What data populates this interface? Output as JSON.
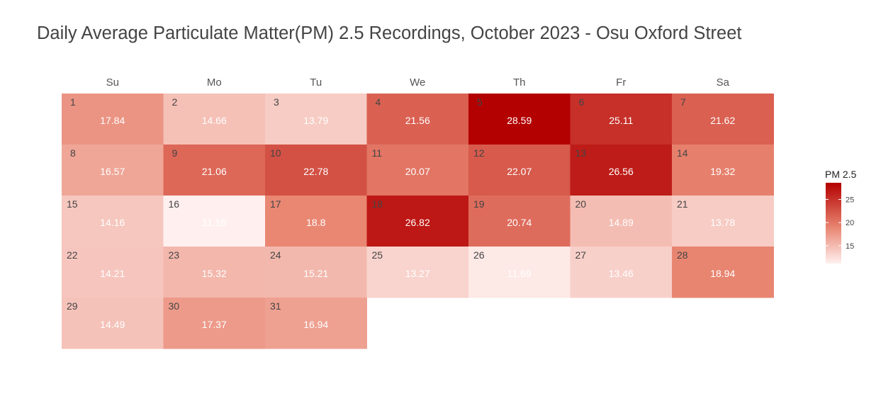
{
  "chart_data": {
    "type": "heatmap",
    "title": "Daily Average Particulate Matter(PM) 2.5 Recordings, October 2023 - Osu Oxford Street",
    "weekdays": [
      "Su",
      "Mo",
      "Tu",
      "We",
      "Th",
      "Fr",
      "Sa"
    ],
    "first_weekday_index": 0,
    "days": [
      1,
      2,
      3,
      4,
      5,
      6,
      7,
      8,
      9,
      10,
      11,
      12,
      13,
      14,
      15,
      16,
      17,
      18,
      19,
      20,
      21,
      22,
      23,
      24,
      25,
      26,
      27,
      28,
      29,
      30,
      31
    ],
    "values": [
      "17.84",
      "14.66",
      "13.79",
      "21.56",
      "28.59",
      "25.11",
      "21.62",
      "16.57",
      "21.06",
      "22.78",
      "20.07",
      "22.07",
      "26.56",
      "19.32",
      "14.16",
      "11.16",
      "18.8",
      "26.82",
      "20.74",
      "14.89",
      "13.78",
      "14.21",
      "15.32",
      "15.21",
      "13.27",
      "11.69",
      "13.46",
      "18.94",
      "14.49",
      "17.37",
      "16.94"
    ],
    "legend": {
      "title": "PM 2.5",
      "ticks": [
        "15",
        "20",
        "25"
      ],
      "range": [
        11.16,
        28.59
      ],
      "low_color": "#fff0ef",
      "high_color": "#b30000"
    }
  }
}
